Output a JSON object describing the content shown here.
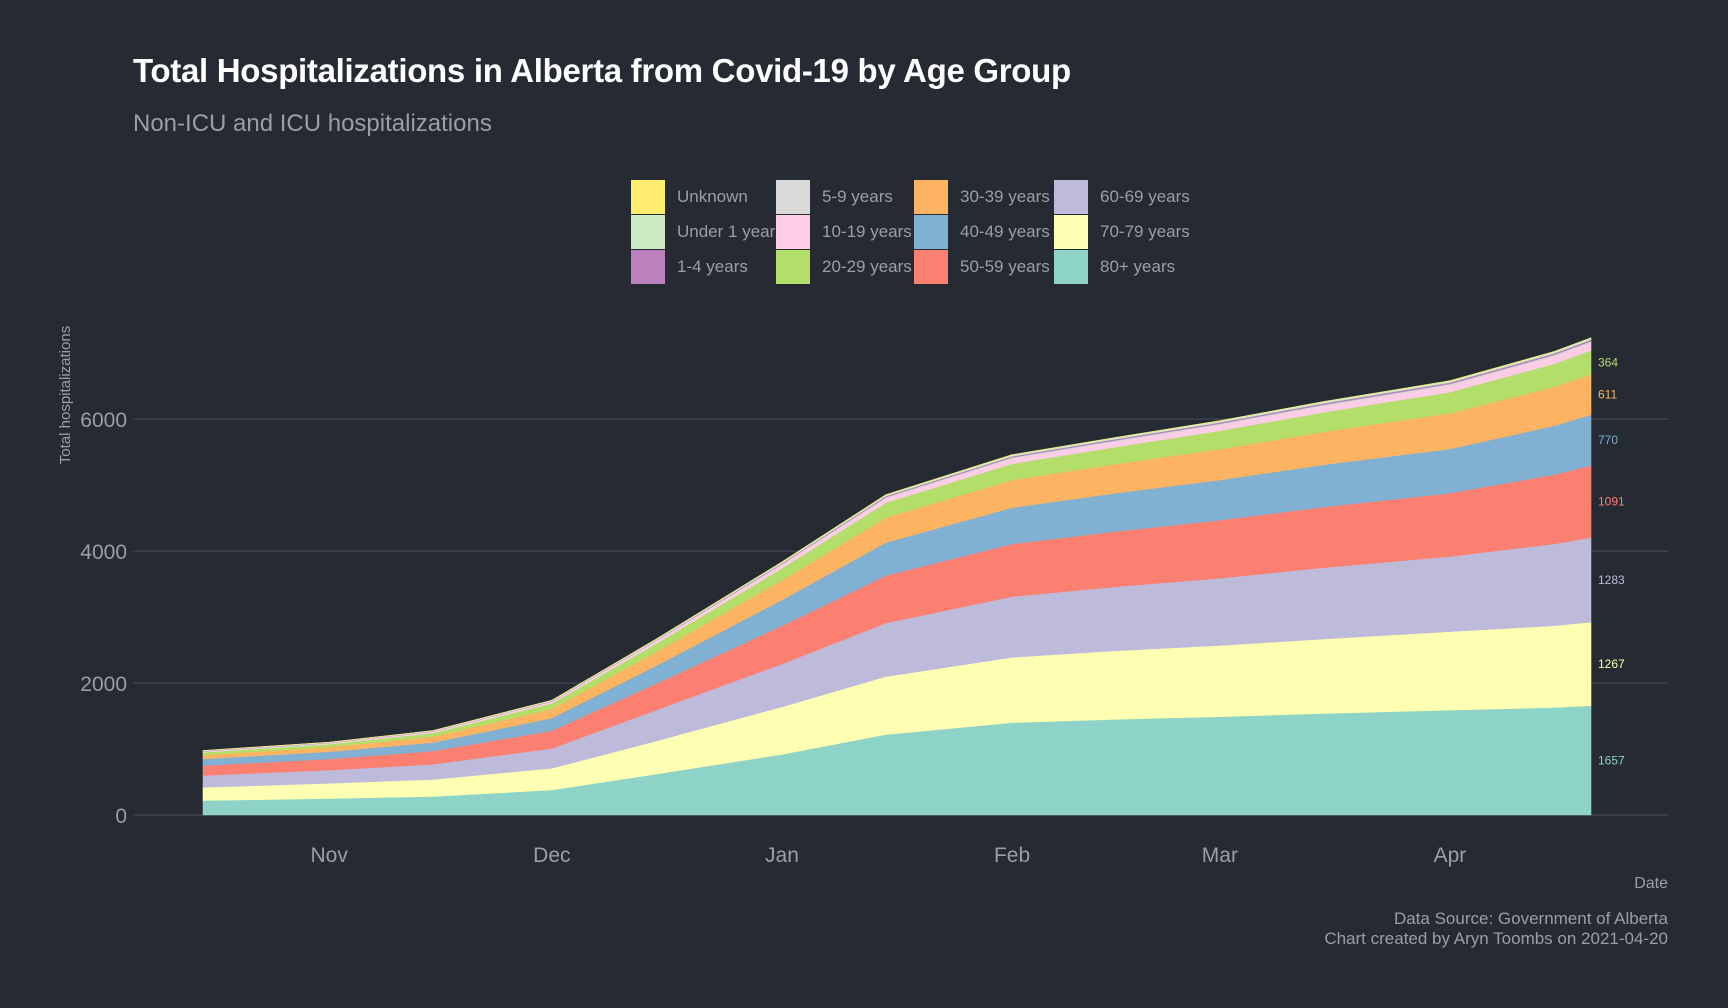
{
  "title": "Total Hospitalizations in Alberta from Covid-19 by Age Group",
  "subtitle": "Non-ICU and ICU hospitalizations",
  "caption": {
    "line1": "Data Source: Government of Alberta",
    "line2": "Chart created by Aryn Toombs on 2021-04-20"
  },
  "chart_data": {
    "type": "area",
    "stacked": true,
    "xlabel": "Date",
    "ylabel": "Total hospitalizations",
    "ylim": [
      0,
      7200
    ],
    "yticks": [
      0,
      2000,
      4000,
      6000
    ],
    "x_tick_labels": [
      {
        "label": "Nov",
        "date": "2020-11-01"
      },
      {
        "label": "Dec",
        "date": "2020-12-01"
      },
      {
        "label": "Jan",
        "date": "2021-01-01"
      },
      {
        "label": "Feb",
        "date": "2021-02-01"
      },
      {
        "label": "Mar",
        "date": "2021-03-01"
      },
      {
        "label": "Apr",
        "date": "2021-04-01"
      }
    ],
    "grid": "horizontal",
    "legend_position": "top",
    "legend_order": [
      "Unknown",
      "Under 1 year",
      "1-4 years",
      "5-9 years",
      "10-19 years",
      "20-29 years",
      "30-39 years",
      "40-49 years",
      "50-59 years",
      "60-69 years",
      "70-79 years",
      "80+ years"
    ],
    "x": [
      "2020-10-15",
      "2020-11-01",
      "2020-11-15",
      "2020-12-01",
      "2020-12-15",
      "2021-01-01",
      "2021-01-15",
      "2021-02-01",
      "2021-02-15",
      "2021-03-01",
      "2021-03-15",
      "2021-04-01",
      "2021-04-15",
      "2021-04-20"
    ],
    "series": [
      {
        "name": "80+ years",
        "color": "#8dd3c7",
        "end_label": "1657",
        "values": [
          220,
          250,
          280,
          380,
          620,
          920,
          1220,
          1400,
          1450,
          1490,
          1540,
          1590,
          1630,
          1657
        ]
      },
      {
        "name": "70-79 years",
        "color": "#ffffb3",
        "end_label": "1267",
        "values": [
          200,
          230,
          260,
          330,
          500,
          720,
          880,
          990,
          1040,
          1080,
          1130,
          1190,
          1240,
          1267
        ]
      },
      {
        "name": "60-69 years",
        "color": "#bebada",
        "end_label": "1283",
        "values": [
          180,
          200,
          230,
          300,
          470,
          650,
          810,
          920,
          970,
          1020,
          1080,
          1140,
          1240,
          1283
        ]
      },
      {
        "name": "50-59 years",
        "color": "#fb8072",
        "end_label": "1091",
        "values": [
          150,
          170,
          200,
          270,
          400,
          580,
          720,
          800,
          840,
          880,
          920,
          960,
          1050,
          1091
        ]
      },
      {
        "name": "40-49 years",
        "color": "#80b1d3",
        "end_label": "770",
        "values": [
          100,
          110,
          130,
          190,
          270,
          390,
          500,
          550,
          580,
          610,
          640,
          670,
          740,
          770
        ]
      },
      {
        "name": "30-39 years",
        "color": "#fdb462",
        "end_label": "611",
        "values": [
          60,
          70,
          90,
          140,
          210,
          300,
          380,
          420,
          440,
          470,
          500,
          540,
          590,
          611
        ]
      },
      {
        "name": "20-29 years",
        "color": "#b3de69",
        "end_label": "364",
        "values": [
          40,
          45,
          55,
          85,
          125,
          180,
          225,
          245,
          260,
          275,
          295,
          320,
          350,
          364
        ]
      },
      {
        "name": "10-19 years",
        "color": "#fccde5",
        "values": [
          12,
          14,
          16,
          22,
          36,
          52,
          65,
          75,
          80,
          85,
          92,
          100,
          108,
          112
        ]
      },
      {
        "name": "5-9 years",
        "color": "#d9d9d9",
        "values": [
          4,
          4,
          5,
          6,
          9,
          13,
          17,
          19,
          20,
          21,
          22,
          23,
          24,
          25
        ]
      },
      {
        "name": "1-4 years",
        "color": "#bc80bd",
        "values": [
          5,
          5,
          6,
          7,
          10,
          14,
          18,
          20,
          21,
          22,
          23,
          24,
          25,
          26
        ]
      },
      {
        "name": "Under 1 year",
        "color": "#ccebc5",
        "values": [
          6,
          6,
          7,
          9,
          12,
          16,
          19,
          21,
          22,
          23,
          24,
          25,
          26,
          27
        ]
      },
      {
        "name": "Unknown",
        "color": "#ffed6f",
        "values": [
          0,
          0,
          0,
          0,
          1,
          1,
          1,
          1,
          1,
          1,
          1,
          1,
          1,
          1
        ]
      }
    ]
  }
}
